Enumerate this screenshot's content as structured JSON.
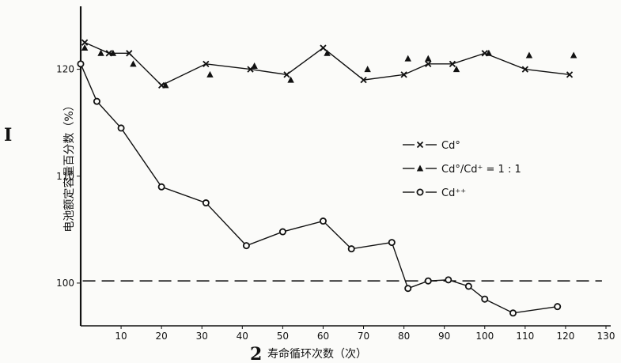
{
  "chart_data": {
    "type": "line",
    "xlabel": "寿命循环次数（次）",
    "xlabel_prefix": "2",
    "ylabel": "电池额定容量百分数（%）",
    "margin_mark": "I",
    "xlim": [
      0,
      130
    ],
    "ylim": [
      96,
      125
    ],
    "x_ticks": [
      10,
      20,
      30,
      40,
      50,
      60,
      70,
      80,
      90,
      100,
      110,
      120,
      130
    ],
    "y_ticks": [
      100,
      110,
      120
    ],
    "reference_line": {
      "y": 100.2,
      "style": "dashed"
    },
    "legend": [
      {
        "label": "Cd°",
        "marker": "x"
      },
      {
        "label": "Cd°/Cd⁺ = 1 : 1",
        "marker": "triangle"
      },
      {
        "label": "Cd⁺⁺",
        "marker": "circle"
      }
    ],
    "series": [
      {
        "name": "Cd°",
        "marker": "x",
        "x": [
          1,
          7,
          12,
          20,
          31,
          42,
          51,
          60,
          70,
          80,
          86,
          92,
          100,
          110,
          121
        ],
        "y": [
          122.5,
          121.5,
          121.5,
          118.5,
          120.5,
          120,
          119.5,
          122,
          119,
          119.5,
          120.5,
          120.5,
          121.5,
          120,
          119.5
        ]
      },
      {
        "name": "Cd°/Cd⁺ = 1 : 1",
        "marker": "triangle",
        "x": [
          1,
          5,
          8,
          13,
          21,
          32,
          43,
          52,
          61,
          71,
          81,
          86,
          93,
          101,
          111,
          122
        ],
        "y": [
          122,
          121.5,
          121.5,
          120.5,
          118.5,
          119.5,
          120.3,
          119,
          121.5,
          120,
          121,
          121,
          120,
          121.5,
          121.3,
          121.3
        ]
      },
      {
        "name": "Cd⁺⁺",
        "marker": "circle",
        "x": [
          0,
          4,
          10,
          20,
          31,
          41,
          50,
          60,
          67,
          77,
          81,
          86,
          91,
          96,
          100,
          107,
          118
        ],
        "y": [
          120.5,
          117,
          114.5,
          109,
          107.5,
          103.5,
          104.8,
          105.8,
          103.2,
          103.8,
          99.5,
          100.2,
          100.3,
          99.7,
          98.5,
          97.2,
          97.8
        ]
      }
    ]
  }
}
